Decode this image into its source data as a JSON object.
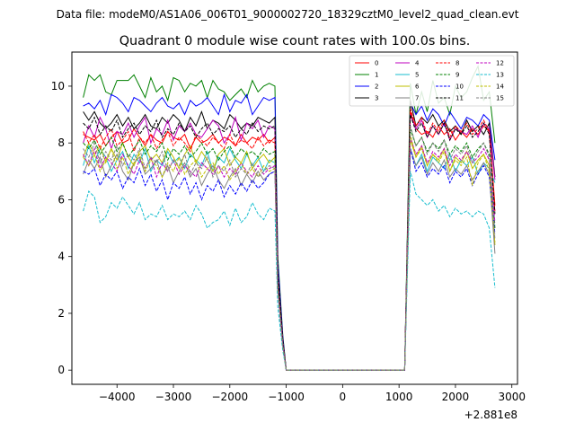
{
  "figure": {
    "suptitle": "Data file: modeM0/AS1A06_006T01_9000002720_18329cztM0_level2_quad_clean.evt"
  },
  "chart_data": {
    "type": "line",
    "title": "Quadrant 0 module wise count rates with 100.0s bins.",
    "xlabel": "",
    "ylabel": "",
    "x_offset_label": "+2.881e8",
    "xlim": [
      -4800,
      3100
    ],
    "ylim": [
      -0.5,
      11.2
    ],
    "x_ticks": [
      -4000,
      -3000,
      -2000,
      -1000,
      0,
      1000,
      2000,
      3000
    ],
    "x_tick_labels": [
      "−4000",
      "−3000",
      "−2000",
      "−1000",
      "0",
      "1000",
      "2000",
      "3000"
    ],
    "y_ticks": [
      0,
      2,
      4,
      6,
      8,
      10
    ],
    "y_tick_labels": [
      "0",
      "2",
      "4",
      "6",
      "8",
      "10"
    ],
    "grid": false,
    "legend_position": "top-right",
    "segments": [
      {
        "x_start": -4600,
        "x_end": -1200,
        "points": 35
      },
      {
        "x_start": 1200,
        "x_end": 2700,
        "points": 16
      }
    ],
    "series": [
      {
        "name": "0",
        "color": "#ff0000",
        "dash": "solid",
        "seg1": [
          8.3,
          8.2,
          8.1,
          8.3,
          7.9,
          8.2,
          8.4,
          8.0,
          8.1,
          8.5,
          8.2,
          7.9,
          8.3,
          8.1,
          8.0,
          8.4,
          8.2,
          8.1,
          8.3,
          7.8,
          8.2,
          8.0,
          8.1,
          8.3,
          8.0,
          8.2,
          8.1,
          7.9,
          8.3,
          8.0,
          8.2,
          8.1,
          8.3,
          8.0,
          8.2
        ],
        "seg2": [
          9.1,
          8.5,
          8.3,
          8.4,
          8.2,
          8.6,
          8.3,
          8.5,
          8.1,
          8.4,
          8.2,
          8.5,
          8.3,
          8.6,
          8.4,
          5.8
        ]
      },
      {
        "name": "1",
        "color": "#008000",
        "dash": "solid",
        "seg1": [
          9.6,
          10.4,
          10.2,
          10.4,
          9.8,
          9.7,
          10.2,
          10.2,
          10.2,
          10.4,
          10.0,
          9.6,
          10.3,
          9.8,
          10.0,
          9.5,
          10.3,
          10.2,
          9.8,
          10.1,
          10.0,
          10.2,
          9.6,
          10.2,
          9.9,
          9.8,
          9.5,
          9.7,
          9.9,
          9.6,
          10.2,
          9.8,
          10.0,
          10.1,
          10.0
        ],
        "seg2": [
          10.1,
          9.0,
          9.8,
          9.1,
          10.2,
          9.4,
          9.6,
          9.0,
          10.0,
          9.6,
          9.8,
          10.3,
          10.7,
          9.5,
          9.8,
          8.0
        ]
      },
      {
        "name": "2",
        "color": "#0000ff",
        "dash": "solid",
        "seg1": [
          9.3,
          9.4,
          9.2,
          9.5,
          9.0,
          9.7,
          9.6,
          9.4,
          9.1,
          9.6,
          9.5,
          9.3,
          9.1,
          9.4,
          9.6,
          9.3,
          9.2,
          9.4,
          9.0,
          9.5,
          9.3,
          9.4,
          9.6,
          9.3,
          9.0,
          9.7,
          9.1,
          9.5,
          9.4,
          9.7,
          9.0,
          9.3,
          9.6,
          9.5,
          9.6
        ],
        "seg2": [
          9.4,
          9.0,
          9.3,
          8.8,
          9.2,
          9.0,
          8.6,
          9.1,
          8.8,
          8.5,
          8.9,
          8.8,
          8.6,
          9.0,
          8.8,
          7.4
        ]
      },
      {
        "name": "3",
        "color": "#000000",
        "dash": "solid",
        "seg1": [
          9.1,
          8.8,
          9.1,
          8.7,
          8.5,
          8.7,
          9.0,
          8.6,
          8.9,
          8.5,
          8.7,
          9.0,
          8.6,
          8.5,
          8.9,
          8.7,
          9.0,
          8.8,
          8.4,
          8.9,
          8.6,
          9.1,
          8.5,
          8.8,
          8.7,
          8.5,
          9.0,
          8.8,
          8.5,
          8.7,
          8.6,
          8.9,
          8.8,
          8.7,
          8.9
        ],
        "seg2": [
          9.5,
          8.6,
          8.9,
          8.7,
          9.0,
          8.6,
          8.8,
          8.4,
          8.6,
          8.3,
          8.8,
          8.4,
          8.6,
          8.3,
          8.7,
          6.8
        ]
      },
      {
        "name": "4",
        "color": "#bf00bf",
        "dash": "solid",
        "seg1": [
          8.0,
          8.6,
          8.2,
          8.9,
          8.5,
          7.8,
          8.4,
          8.3,
          8.7,
          8.2,
          8.6,
          8.9,
          8.0,
          8.5,
          8.3,
          8.8,
          8.1,
          8.6,
          8.4,
          8.7,
          8.3,
          8.2,
          8.5,
          8.8,
          8.6,
          8.0,
          8.3,
          8.9,
          8.1,
          8.7,
          8.5,
          8.8,
          8.2,
          8.6,
          8.5
        ],
        "seg2": [
          9.0,
          8.5,
          8.8,
          8.2,
          8.6,
          8.3,
          8.7,
          8.1,
          8.5,
          8.4,
          8.3,
          8.6,
          8.2,
          8.7,
          8.5,
          6.7
        ]
      },
      {
        "name": "5",
        "color": "#17becf",
        "dash": "solid",
        "seg1": [
          7.2,
          7.9,
          7.3,
          7.8,
          7.5,
          7.0,
          7.4,
          7.7,
          7.1,
          7.6,
          7.3,
          7.8,
          7.0,
          7.4,
          7.2,
          7.7,
          7.3,
          7.5,
          7.1,
          7.6,
          7.4,
          7.2,
          7.7,
          7.0,
          7.5,
          7.3,
          7.8,
          7.4,
          7.1,
          7.6,
          7.2,
          7.5,
          7.0,
          7.4,
          7.3
        ],
        "seg2": [
          7.8,
          7.2,
          7.6,
          7.0,
          7.5,
          7.3,
          7.1,
          7.6,
          7.0,
          7.4,
          7.2,
          7.5,
          6.9,
          7.3,
          7.1,
          6.6
        ]
      },
      {
        "name": "6",
        "color": "#bfbf00",
        "dash": "solid",
        "seg1": [
          7.5,
          8.0,
          7.6,
          7.9,
          7.3,
          7.8,
          7.4,
          8.0,
          7.5,
          7.2,
          7.7,
          7.9,
          7.4,
          7.6,
          7.3,
          7.8,
          7.5,
          7.1,
          7.6,
          7.9,
          7.3,
          7.7,
          7.4,
          7.0,
          7.6,
          7.8,
          7.2,
          7.5,
          7.3,
          7.7,
          7.1,
          7.4,
          7.6,
          7.3,
          7.5
        ],
        "seg2": [
          8.1,
          7.5,
          7.9,
          7.2,
          7.6,
          7.4,
          7.8,
          7.0,
          7.5,
          7.3,
          7.7,
          7.1,
          7.4,
          7.6,
          7.2,
          4.4
        ]
      },
      {
        "name": "7",
        "color": "#808080",
        "dash": "solid",
        "seg1": [
          6.9,
          7.4,
          7.1,
          7.5,
          6.8,
          7.2,
          7.6,
          7.0,
          6.7,
          7.3,
          7.5,
          6.9,
          7.1,
          7.4,
          6.8,
          7.2,
          6.6,
          7.0,
          7.3,
          6.8,
          7.1,
          6.5,
          6.9,
          7.2,
          6.7,
          6.4,
          6.8,
          7.1,
          6.5,
          6.9,
          6.6,
          7.0,
          6.7,
          6.9,
          7.0
        ],
        "seg2": [
          7.8,
          7.2,
          7.5,
          6.9,
          7.3,
          7.0,
          7.4,
          6.8,
          7.1,
          6.9,
          7.2,
          6.7,
          7.0,
          7.3,
          6.9,
          4.1
        ]
      },
      {
        "name": "8",
        "color": "#ff0000",
        "dash": "dashed",
        "seg1": [
          8.4,
          8.0,
          8.3,
          7.8,
          8.2,
          8.5,
          7.9,
          8.1,
          8.4,
          7.7,
          8.2,
          8.0,
          8.3,
          7.8,
          8.1,
          8.4,
          7.9,
          8.2,
          8.0,
          7.7,
          8.3,
          8.1,
          7.9,
          8.2,
          8.0,
          7.8,
          8.3,
          7.9,
          8.1,
          8.0,
          7.8,
          8.2,
          7.9,
          8.1,
          8.0
        ],
        "seg2": [
          9.2,
          8.6,
          8.9,
          8.3,
          8.7,
          8.4,
          8.8,
          8.2,
          8.6,
          8.4,
          8.7,
          8.3,
          8.5,
          8.8,
          8.4,
          5.6
        ]
      },
      {
        "name": "9",
        "color": "#008000",
        "dash": "dashed",
        "seg1": [
          8.0,
          7.8,
          8.1,
          7.6,
          7.9,
          8.2,
          7.7,
          8.0,
          7.5,
          7.8,
          8.1,
          7.6,
          7.9,
          7.7,
          8.0,
          7.4,
          7.8,
          7.6,
          7.9,
          7.5,
          7.7,
          8.0,
          7.6,
          7.8,
          7.4,
          7.7,
          7.9,
          7.5,
          7.8,
          7.6,
          7.7,
          7.5,
          7.8,
          7.6,
          7.7
        ],
        "seg2": [
          8.5,
          7.9,
          8.2,
          7.7,
          8.0,
          7.8,
          8.1,
          7.6,
          7.9,
          7.7,
          8.0,
          7.5,
          7.8,
          8.0,
          7.6,
          5.0
        ]
      },
      {
        "name": "10",
        "color": "#0000ff",
        "dash": "dashed",
        "seg1": [
          7.0,
          6.9,
          7.1,
          6.5,
          6.9,
          6.7,
          7.0,
          6.4,
          6.8,
          6.6,
          7.1,
          6.5,
          6.9,
          6.3,
          6.7,
          6.0,
          6.6,
          6.4,
          6.8,
          6.2,
          6.6,
          6.0,
          6.5,
          6.3,
          6.7,
          6.1,
          6.5,
          6.2,
          6.6,
          6.3,
          6.7,
          6.4,
          6.6,
          6.9,
          7.0
        ],
        "seg2": [
          7.8,
          7.0,
          7.3,
          6.8,
          7.1,
          6.9,
          7.2,
          6.6,
          7.0,
          6.8,
          7.1,
          6.5,
          6.9,
          7.2,
          6.8,
          4.8
        ]
      },
      {
        "name": "11",
        "color": "#000000",
        "dash": "dashed",
        "seg1": [
          8.7,
          8.5,
          8.9,
          8.3,
          8.6,
          8.4,
          8.8,
          8.2,
          8.5,
          8.7,
          8.3,
          8.6,
          8.4,
          8.8,
          8.2,
          8.5,
          8.3,
          8.7,
          8.4,
          8.6,
          8.2,
          8.5,
          8.7,
          8.3,
          8.5,
          8.4,
          8.6,
          8.2,
          8.5,
          8.3,
          8.7,
          8.4,
          8.6,
          8.5,
          8.6
        ],
        "seg2": [
          9.0,
          8.4,
          8.7,
          8.2,
          8.6,
          8.3,
          8.7,
          8.1,
          8.5,
          8.3,
          8.6,
          8.2,
          8.4,
          8.7,
          8.3,
          5.5
        ]
      },
      {
        "name": "12",
        "color": "#bf00bf",
        "dash": "dashed",
        "seg1": [
          7.6,
          7.2,
          7.8,
          7.1,
          7.5,
          7.3,
          7.0,
          7.6,
          7.2,
          6.9,
          7.4,
          7.1,
          7.5,
          6.8,
          7.3,
          7.0,
          7.4,
          6.9,
          7.2,
          7.0,
          6.8,
          7.3,
          7.1,
          6.9,
          7.2,
          6.8,
          7.1,
          6.9,
          7.3,
          7.0,
          6.8,
          7.2,
          6.9,
          7.1,
          7.2
        ],
        "seg2": [
          8.2,
          7.6,
          7.9,
          7.3,
          7.7,
          7.5,
          7.8,
          7.2,
          7.6,
          7.4,
          7.7,
          7.3,
          7.5,
          7.8,
          7.4,
          5.2
        ]
      },
      {
        "name": "13",
        "color": "#17becf",
        "dash": "dashed",
        "seg1": [
          5.6,
          6.3,
          6.1,
          5.2,
          5.4,
          5.9,
          5.7,
          6.1,
          5.8,
          5.5,
          5.9,
          5.3,
          5.5,
          5.4,
          5.8,
          5.3,
          5.5,
          5.4,
          5.6,
          5.3,
          5.8,
          5.5,
          5.0,
          5.2,
          5.3,
          5.6,
          5.1,
          5.7,
          5.2,
          5.4,
          5.9,
          5.5,
          5.3,
          5.7,
          5.6
        ],
        "seg2": [
          7.0,
          6.2,
          6.0,
          5.8,
          6.0,
          5.6,
          5.8,
          5.4,
          5.7,
          5.5,
          5.6,
          5.4,
          5.6,
          5.5,
          5.0,
          2.9
        ]
      },
      {
        "name": "14",
        "color": "#bfbf00",
        "dash": "dashed",
        "seg1": [
          7.5,
          7.2,
          7.6,
          7.0,
          7.4,
          7.8,
          7.1,
          7.5,
          6.9,
          7.3,
          7.6,
          7.0,
          7.4,
          7.2,
          6.8,
          7.3,
          7.0,
          7.5,
          6.9,
          7.2,
          7.4,
          6.8,
          7.1,
          7.3,
          6.9,
          7.2,
          6.7,
          7.0,
          7.3,
          6.9,
          7.1,
          6.8,
          7.2,
          7.0,
          7.1
        ],
        "seg2": [
          8.3,
          7.5,
          7.8,
          7.2,
          7.6,
          7.3,
          7.7,
          7.0,
          7.4,
          7.2,
          7.5,
          6.5,
          7.3,
          7.6,
          7.0,
          4.5
        ]
      },
      {
        "name": "15",
        "color": "#808080",
        "dash": "dashed",
        "seg1": [
          7.8,
          7.5,
          8.0,
          7.3,
          7.7,
          7.4,
          7.9,
          7.2,
          7.6,
          7.4,
          7.8,
          7.1,
          7.5,
          7.3,
          7.7,
          7.0,
          7.4,
          7.2,
          7.6,
          6.9,
          7.3,
          7.1,
          7.5,
          6.8,
          7.2,
          7.0,
          7.4,
          6.8,
          7.1,
          6.9,
          7.3,
          6.8,
          7.0,
          7.2,
          7.1
        ],
        "seg2": [
          8.6,
          7.9,
          8.2,
          7.6,
          8.0,
          7.7,
          8.1,
          7.4,
          7.8,
          7.6,
          7.9,
          7.3,
          7.7,
          8.0,
          7.5,
          4.6
        ]
      }
    ]
  }
}
